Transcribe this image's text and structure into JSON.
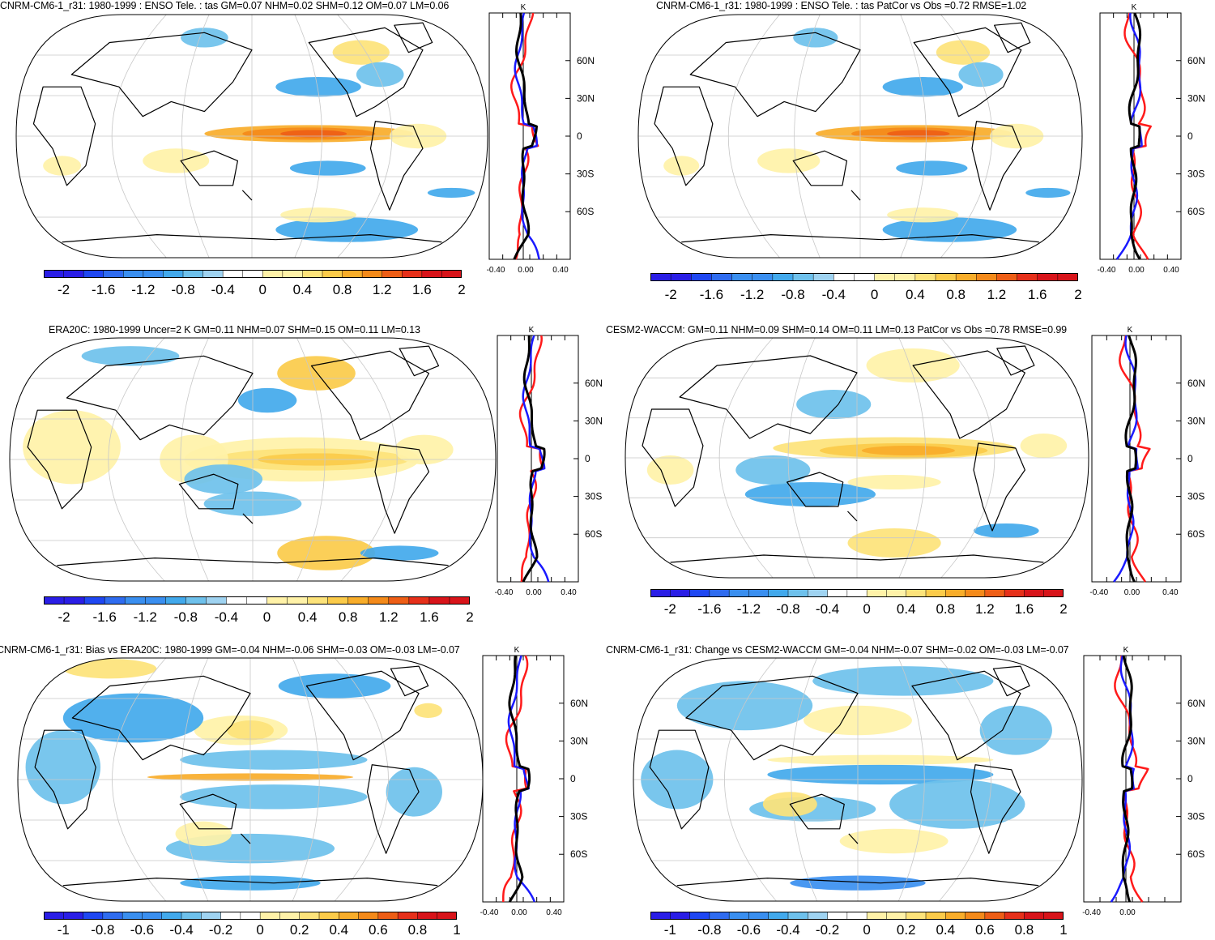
{
  "colors": {
    "neg": [
      "#2a1ee6",
      "#1f47f2",
      "#2f6cf0",
      "#3a8ff0",
      "#42a9ec",
      "#6ec1ec",
      "#9fd3f1"
    ],
    "zero": "#ffffff",
    "pos": [
      "#fff2a8",
      "#fde37a",
      "#fbcb4a",
      "#f8ad2a",
      "#f48a1a",
      "#ee5e16",
      "#e6301a",
      "#d8141a"
    ],
    "coast": "#000000",
    "grid": "#c8c8c8",
    "series_red": "#ff1a1a",
    "series_blue": "#1a1aff",
    "series_black": "#000000"
  },
  "panels": [
    {
      "id": "p1",
      "title": "CNRM-CM6-1_r31: 1980-1999 : ENSO Tele. : tas GM=0.07 NHM=0.02 SHM=0.12 OM=0.07 LM=0.06",
      "colorbar_labels": [
        "-2",
        "-1.6",
        "-1.2",
        "-0.8",
        "-0.4",
        "0",
        "0.4",
        "0.8",
        "1.2",
        "1.6",
        "2"
      ],
      "zonal": {
        "unit": "K",
        "lat_labels": [
          "60N",
          "30N",
          "0",
          "30S",
          "60S"
        ],
        "x_labels": [
          "-0.40",
          "0.00",
          "0.40"
        ]
      }
    },
    {
      "id": "p2",
      "title": "CNRM-CM6-1_r31: 1980-1999 : ENSO Tele. : tas PatCor vs Obs =0.72 RMSE=1.02",
      "colorbar_labels": [
        "-2",
        "-1.6",
        "-1.2",
        "-0.8",
        "-0.4",
        "0",
        "0.4",
        "0.8",
        "1.2",
        "1.6",
        "2"
      ],
      "zonal": {
        "unit": "K",
        "lat_labels": [
          "60N",
          "30N",
          "0",
          "30S",
          "60S"
        ],
        "x_labels": [
          "-0.40",
          "0.00",
          "0.40"
        ]
      }
    },
    {
      "id": "p3",
      "title": "ERA20C: 1980-1999 Uncer=2 K GM=0.11 NHM=0.07 SHM=0.15 OM=0.11 LM=0.13",
      "colorbar_labels": [
        "-2",
        "-1.6",
        "-1.2",
        "-0.8",
        "-0.4",
        "0",
        "0.4",
        "0.8",
        "1.2",
        "1.6",
        "2"
      ],
      "zonal": {
        "unit": "K",
        "lat_labels": [
          "60N",
          "30N",
          "0",
          "30S",
          "60S"
        ],
        "x_labels": [
          "-0.40",
          "0.00",
          "0.40"
        ]
      }
    },
    {
      "id": "p4",
      "title": "CESM2-WACCM: GM=0.11 NHM=0.09 SHM=0.14 OM=0.11 LM=0.13 PatCor vs Obs =0.78 RMSE=0.99",
      "colorbar_labels": [
        "-2",
        "-1.6",
        "-1.2",
        "-0.8",
        "-0.4",
        "0",
        "0.4",
        "0.8",
        "1.2",
        "1.6",
        "2"
      ],
      "zonal": {
        "unit": "K",
        "lat_labels": [
          "60N",
          "30N",
          "0",
          "30S",
          "60S"
        ],
        "x_labels": [
          "-0.40",
          "0.00",
          "0.40"
        ]
      }
    },
    {
      "id": "p5",
      "title": "CNRM-CM6-1_r31: Bias vs ERA20C: 1980-1999 GM=-0.04 NHM=-0.06 SHM=-0.03 OM=-0.03 LM=-0.07",
      "colorbar_labels": [
        "-1",
        "-0.8",
        "-0.6",
        "-0.4",
        "-0.2",
        "0",
        "0.2",
        "0.4",
        "0.6",
        "0.8",
        "1"
      ],
      "zonal": {
        "unit": "K",
        "lat_labels": [
          "60N",
          "30N",
          "0",
          "30S",
          "60S"
        ],
        "x_labels": [
          "-0.40",
          "0.00",
          "0.40"
        ]
      }
    },
    {
      "id": "p6",
      "title": "CNRM-CM6-1_r31: Change vs CESM2-WACCM GM=-0.04 NHM=-0.07 SHM=-0.02 OM=-0.03 LM=-0.07",
      "colorbar_labels": [
        "-1",
        "-0.8",
        "-0.6",
        "-0.4",
        "-0.2",
        "0",
        "0.2",
        "0.4",
        "0.6",
        "0.8",
        "1"
      ],
      "zonal": {
        "unit": "K",
        "lat_labels": [
          "60N",
          "30N",
          "0",
          "30S",
          "60S"
        ],
        "x_labels": [
          "-0.40",
          "0.00"
        ]
      }
    }
  ]
}
